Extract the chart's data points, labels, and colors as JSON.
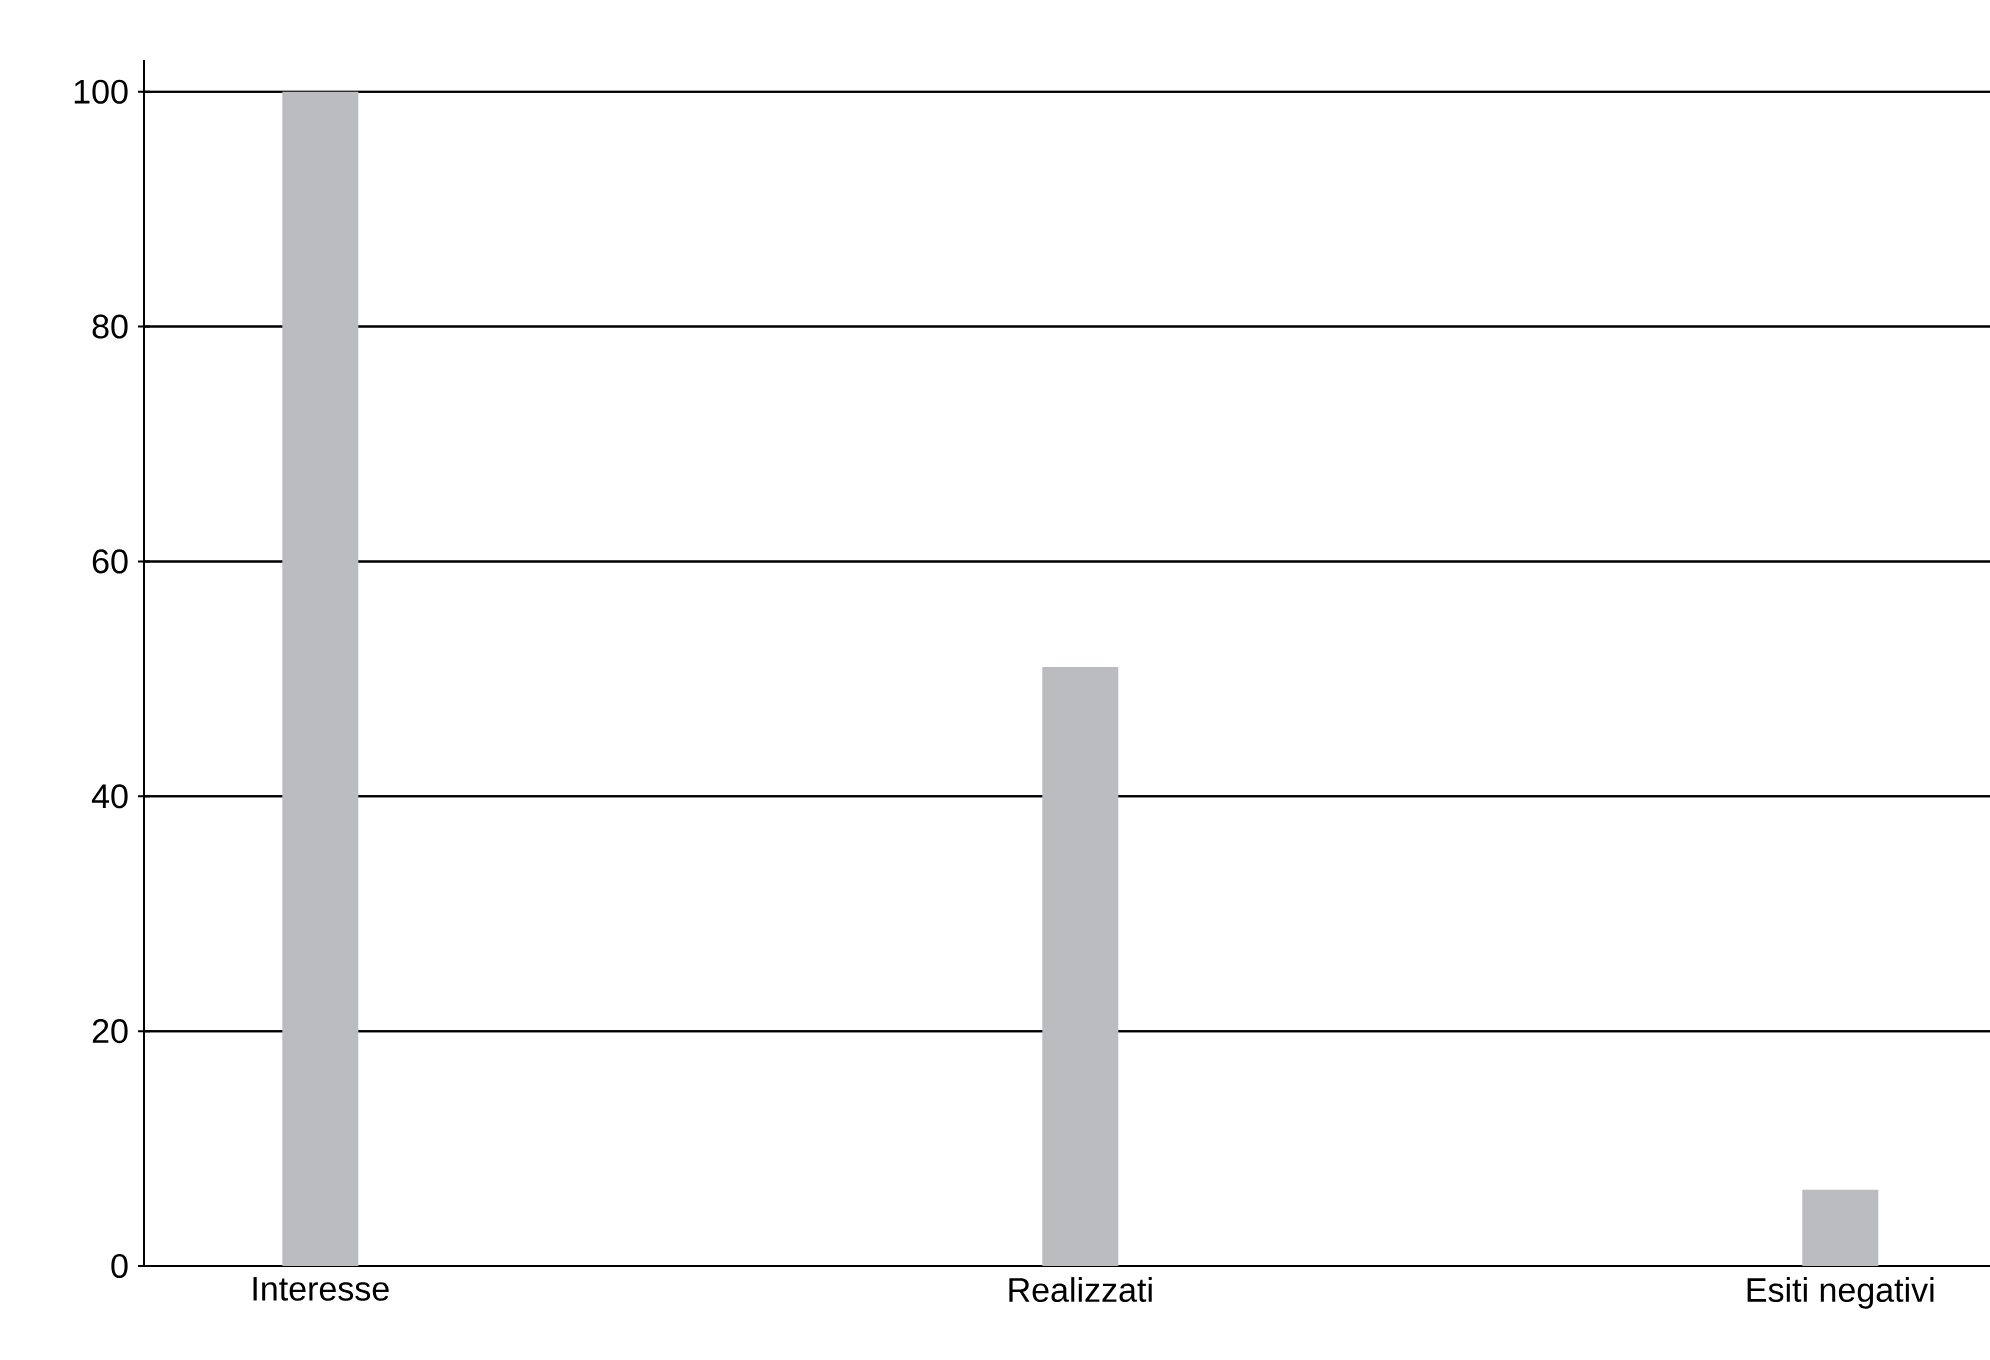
{
  "chart_data": {
    "type": "bar",
    "categories": [
      "Interesse",
      "Realizzati",
      "Esiti negativi"
    ],
    "values": [
      100,
      51,
      6.5
    ],
    "color": "#bbbcc0",
    "ylim": [
      0,
      102.7
    ],
    "yticks": [
      0,
      20,
      40,
      60,
      80,
      100
    ],
    "grid": "y"
  }
}
